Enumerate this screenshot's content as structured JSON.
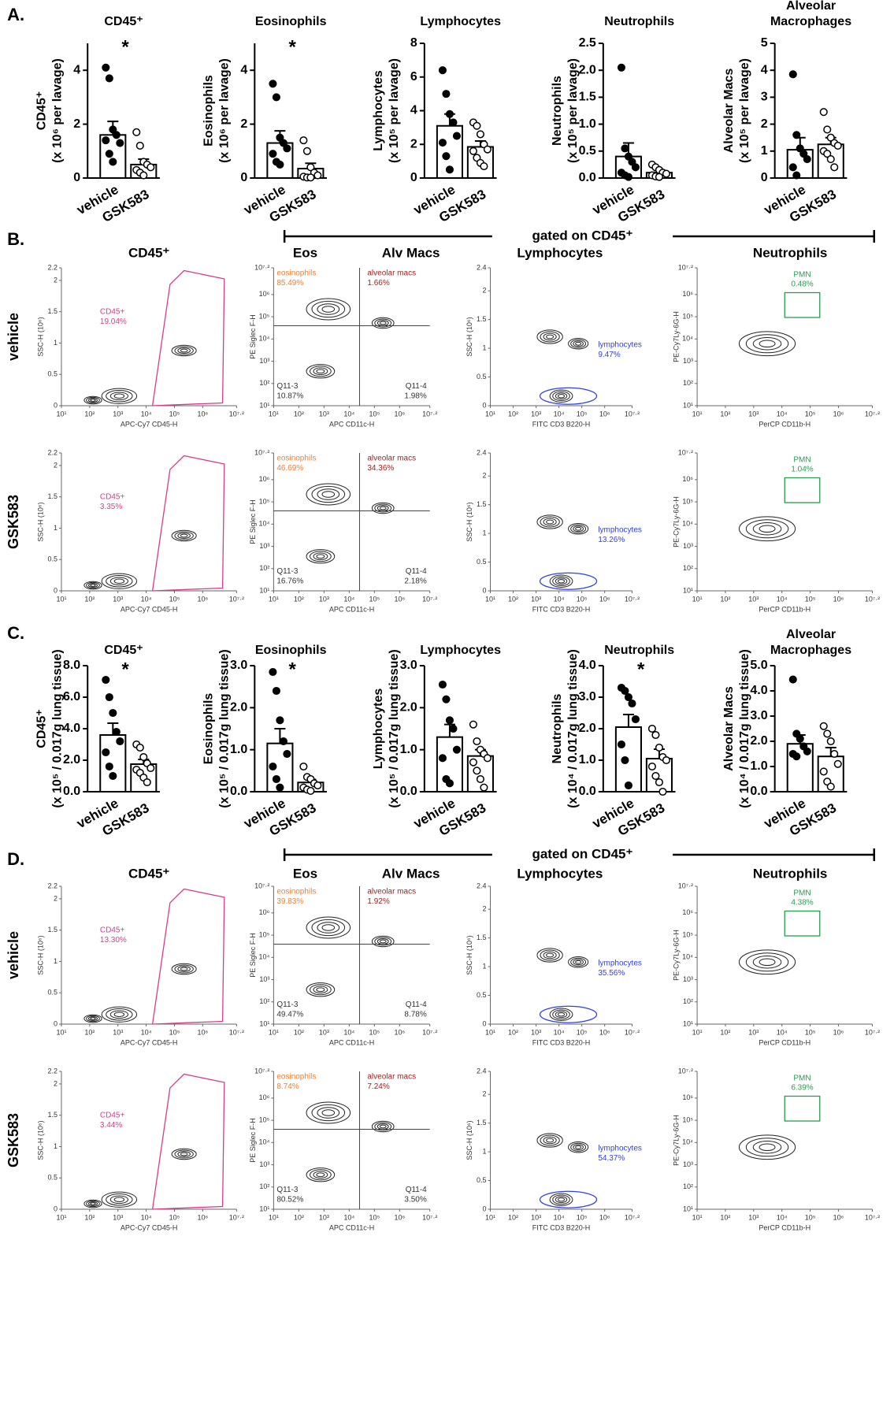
{
  "panel_labels": [
    "A.",
    "B.",
    "C.",
    "D."
  ],
  "chart_data": [
    {
      "type": "bar",
      "title": [
        "CD45⁺"
      ],
      "ylabel": [
        "CD45⁺",
        "(x 10⁶ per lavage)"
      ],
      "categories": [
        "vehicle",
        "GSK583"
      ],
      "values": [
        1.6,
        0.5
      ],
      "errors": [
        0.5,
        0.2
      ],
      "points": [
        [
          4.1,
          3.7,
          1.8,
          1.6,
          1.3,
          1.4,
          0.9,
          0.6
        ],
        [
          1.7,
          1.2,
          0.6,
          0.5,
          0.4,
          0.3,
          0.2,
          0.1
        ]
      ],
      "markers": [
        "filled",
        "open"
      ],
      "annotation": "*",
      "ylim": [
        0,
        5
      ],
      "yticks": [
        0,
        2,
        4
      ],
      "color": "#000000"
    },
    {
      "type": "bar",
      "title": [
        "Eosinophils"
      ],
      "ylabel": [
        "Eosinophils",
        "(x 10⁶ per lavage)"
      ],
      "categories": [
        "vehicle",
        "GSK583"
      ],
      "values": [
        1.3,
        0.35
      ],
      "errors": [
        0.45,
        0.2
      ],
      "points": [
        [
          3.5,
          3.0,
          1.5,
          1.3,
          1.1,
          0.9,
          0.6,
          0.5
        ],
        [
          1.4,
          1.0,
          0.4,
          0.2,
          0.1,
          0.05,
          0.02,
          0.02
        ]
      ],
      "markers": [
        "filled",
        "open"
      ],
      "annotation": "*",
      "ylim": [
        0,
        5
      ],
      "yticks": [
        0,
        2,
        4
      ],
      "color": "#000000"
    },
    {
      "type": "bar",
      "title": [
        "Lymphocytes"
      ],
      "ylabel": [
        "Lymphocytes",
        "(x 10⁵ per lavage)"
      ],
      "categories": [
        "vehicle",
        "GSK583"
      ],
      "values": [
        3.1,
        1.85
      ],
      "errors": [
        0.7,
        0.35
      ],
      "points": [
        [
          6.4,
          5.0,
          3.8,
          3.3,
          2.5,
          2.1,
          1.3,
          0.5
        ],
        [
          3.3,
          3.1,
          2.6,
          2.0,
          1.7,
          1.6,
          1.2,
          0.9,
          0.7
        ]
      ],
      "markers": [
        "filled",
        "open"
      ],
      "ylim": [
        0,
        8
      ],
      "yticks": [
        0,
        2,
        4,
        6,
        8
      ],
      "color": "#000000"
    },
    {
      "type": "bar",
      "title": [
        "Neutrophils"
      ],
      "ylabel": [
        "Neutrophils",
        "(x 10⁵ per lavage)"
      ],
      "categories": [
        "vehicle",
        "GSK583"
      ],
      "values": [
        0.4,
        0.1
      ],
      "errors": [
        0.25,
        0.04
      ],
      "points": [
        [
          2.05,
          0.55,
          0.4,
          0.3,
          0.2,
          0.1,
          0.05,
          0.02
        ],
        [
          0.25,
          0.2,
          0.15,
          0.1,
          0.08,
          0.05,
          0.03,
          0.02
        ]
      ],
      "markers": [
        "filled",
        "open"
      ],
      "ylim": [
        0,
        2.5
      ],
      "yticks": [
        {
          "value": 0,
          "label": "0.0"
        },
        0.5,
        {
          "value": 1,
          "label": "1.0"
        },
        1.5,
        {
          "value": 2,
          "label": "2.0"
        },
        2.5
      ],
      "color": "#000000"
    },
    {
      "type": "bar",
      "title": [
        "Alveolar",
        "Macrophages"
      ],
      "ylabel": [
        "Alveolar Macs",
        "(x 10⁵ per lavage)"
      ],
      "categories": [
        "vehicle",
        "GSK583"
      ],
      "values": [
        1.05,
        1.25
      ],
      "errors": [
        0.45,
        0.25
      ],
      "points": [
        [
          3.85,
          1.6,
          1.1,
          0.9,
          0.7,
          0.4,
          0.1
        ],
        [
          2.45,
          1.8,
          1.5,
          1.3,
          1.2,
          1.0,
          0.9,
          0.7,
          0.4
        ]
      ],
      "markers": [
        "filled",
        "open"
      ],
      "ylim": [
        0,
        5
      ],
      "yticks": [
        0,
        1,
        2,
        3,
        4,
        5
      ],
      "color": "#000000"
    },
    {
      "type": "bar",
      "title": [
        "CD45⁺"
      ],
      "ylabel": [
        "CD45⁺",
        "(x 10⁵ / 0.017g lung tissue)"
      ],
      "categories": [
        "vehicle",
        "GSK583"
      ],
      "values": [
        3.6,
        1.75
      ],
      "errors": [
        0.75,
        0.3
      ],
      "points": [
        [
          7.1,
          6.0,
          5.0,
          3.8,
          3.2,
          2.5,
          1.6,
          1.0
        ],
        [
          3.0,
          2.8,
          2.2,
          1.8,
          1.5,
          1.4,
          1.2,
          0.9,
          0.6
        ]
      ],
      "markers": [
        "filled",
        "open"
      ],
      "annotation": "*",
      "ylim": [
        0,
        8
      ],
      "yticks": [
        {
          "value": 0,
          "label": "0.0"
        },
        {
          "value": 2,
          "label": "2.0"
        },
        {
          "value": 4,
          "label": "4.0"
        },
        {
          "value": 6,
          "label": "6.0"
        },
        {
          "value": 8,
          "label": "8.0"
        }
      ],
      "color": "#000000"
    },
    {
      "type": "bar",
      "title": [
        "Eosinophils"
      ],
      "ylabel": [
        "Eosinophils",
        "(x 10⁵ / 0.017g lung tissue)"
      ],
      "categories": [
        "vehicle",
        "GSK583"
      ],
      "values": [
        1.15,
        0.22
      ],
      "errors": [
        0.35,
        0.07
      ],
      "points": [
        [
          2.85,
          2.4,
          1.7,
          1.2,
          0.9,
          0.6,
          0.3,
          0.1
        ],
        [
          0.6,
          0.35,
          0.3,
          0.2,
          0.15,
          0.1,
          0.05,
          0.02
        ]
      ],
      "markers": [
        "filled",
        "open"
      ],
      "annotation": "*",
      "ylim": [
        0,
        3
      ],
      "yticks": [
        {
          "value": 0,
          "label": "0.0"
        },
        {
          "value": 1,
          "label": "1.0"
        },
        {
          "value": 2,
          "label": "2.0"
        },
        {
          "value": 3,
          "label": "3.0"
        }
      ],
      "color": "#000000"
    },
    {
      "type": "bar",
      "title": [
        "Lymphocytes"
      ],
      "ylabel": [
        "Lymphocytes",
        "(x 10⁵ / 0.017g lung tissue)"
      ],
      "categories": [
        "vehicle",
        "GSK583"
      ],
      "values": [
        1.3,
        0.85
      ],
      "errors": [
        0.3,
        0.15
      ],
      "points": [
        [
          2.55,
          2.2,
          1.7,
          1.5,
          1.0,
          0.8,
          0.3,
          0.2
        ],
        [
          1.6,
          1.2,
          1.0,
          0.9,
          0.8,
          0.7,
          0.5,
          0.3,
          0.1
        ]
      ],
      "markers": [
        "filled",
        "open"
      ],
      "ylim": [
        0,
        3
      ],
      "yticks": [
        {
          "value": 0,
          "label": "0.0"
        },
        {
          "value": 1,
          "label": "1.0"
        },
        {
          "value": 2,
          "label": "2.0"
        },
        {
          "value": 3,
          "label": "3.0"
        }
      ],
      "color": "#000000"
    },
    {
      "type": "bar",
      "title": [
        "Neutrophils"
      ],
      "ylabel": [
        "Neutrophils",
        "(x 10⁴ / 0.017g lung tissue)"
      ],
      "categories": [
        "vehicle",
        "GSK583"
      ],
      "values": [
        2.05,
        1.05
      ],
      "errors": [
        0.4,
        0.3
      ],
      "points": [
        [
          3.3,
          3.2,
          3.0,
          2.8,
          2.3,
          1.5,
          1.0,
          0.2
        ],
        [
          2.0,
          1.8,
          1.4,
          1.1,
          1.0,
          0.8,
          0.5,
          0.3,
          0.0
        ]
      ],
      "markers": [
        "filled",
        "open"
      ],
      "annotation": "*",
      "ylim": [
        0,
        4
      ],
      "yticks": [
        {
          "value": 0,
          "label": "0.0"
        },
        {
          "value": 1,
          "label": "1.0"
        },
        {
          "value": 2,
          "label": "2.0"
        },
        {
          "value": 3,
          "label": "3.0"
        },
        {
          "value": 4,
          "label": "4.0"
        }
      ],
      "color": "#000000"
    },
    {
      "type": "bar",
      "title": [
        "Alveolar",
        "Macrophages"
      ],
      "ylabel": [
        "Alveolar Macs",
        "(x 10⁴ / 0.017g lung tissue)"
      ],
      "categories": [
        "vehicle",
        "GSK583"
      ],
      "values": [
        1.9,
        1.4
      ],
      "errors": [
        0.35,
        0.35
      ],
      "points": [
        [
          4.45,
          2.3,
          2.1,
          1.8,
          1.6,
          1.5,
          1.4
        ],
        [
          2.6,
          2.3,
          2.0,
          1.5,
          1.1,
          0.8,
          0.4,
          0.2
        ]
      ],
      "markers": [
        "filled",
        "open"
      ],
      "ylim": [
        0,
        5
      ],
      "yticks": [
        {
          "value": 0,
          "label": "0.0"
        },
        {
          "value": 1,
          "label": "1.0"
        },
        {
          "value": 2,
          "label": "2.0"
        },
        {
          "value": 3,
          "label": "3.0"
        },
        {
          "value": 4,
          "label": "4.0"
        },
        {
          "value": 5,
          "label": "5.0"
        }
      ],
      "color": "#000000"
    }
  ],
  "flow_log_ticks": [
    {
      "value": 10,
      "label": "10¹"
    },
    {
      "value": 100,
      "label": "10²"
    },
    {
      "value": 1000,
      "label": "10³"
    },
    {
      "value": 10000,
      "label": "10⁴"
    },
    {
      "value": 100000,
      "label": "10⁵"
    },
    {
      "value": 1000000,
      "label": "10⁶"
    },
    {
      "value": 15848932,
      "label": "10⁷·²"
    }
  ],
  "flow_log_lim": [
    10,
    15848932
  ],
  "flow_axes": {
    "cd45": {
      "xlabel": "APC-Cy7 CD45-H",
      "ylabel": "SSC-H (10⁶)",
      "yticks": [
        0,
        0.5,
        1,
        1.5,
        2,
        2.2
      ],
      "ylim": [
        0,
        2.2
      ]
    },
    "eos": {
      "xlabel": "APC CD11c-H",
      "ylabel": "PE Siglec F-H",
      "ylog": true
    },
    "lymph": {
      "xlabel": "FITC CD3 B220-H",
      "ylabel": "SSC-H (10⁶)",
      "yticks": [
        0,
        0.5,
        1,
        1.5,
        2,
        2.4
      ],
      "ylim": [
        0,
        2.4
      ]
    },
    "neut": {
      "xlabel": "PerCP CD11b-H",
      "ylabel": "PE-Cy7Ly-6G-H",
      "ylog": true
    }
  },
  "flow": [
    {
      "header": "gated on CD45⁺",
      "column_titles": [
        "CD45⁺",
        "Eos",
        "Alv Macs",
        "Lymphocytes",
        "Neutrophils"
      ],
      "rows": [
        {
          "name": "vehicle",
          "cd45": [
            "CD45+",
            "19.04%"
          ],
          "eos": [
            [
              "eosinophils",
              "85.49%"
            ],
            [
              "alveolar macs",
              "1.66%"
            ],
            [
              "Q11-3",
              "10.87%"
            ],
            [
              "Q11-4",
              "1.98%"
            ]
          ],
          "lymph": [
            "lymphocytes",
            "9.47%"
          ],
          "neut": [
            "PMN",
            "0.48%"
          ]
        },
        {
          "name": "GSK583",
          "cd45": [
            "CD45+",
            "3.35%"
          ],
          "eos": [
            [
              "eosinophils",
              "46.69%"
            ],
            [
              "alveolar macs",
              "34.36%"
            ],
            [
              "Q11-3",
              "16.76%"
            ],
            [
              "Q11-4",
              "2.18%"
            ]
          ],
          "lymph": [
            "lymphocytes",
            "13.26%"
          ],
          "neut": [
            "PMN",
            "1.04%"
          ]
        }
      ]
    },
    {
      "header": "gated on CD45⁺",
      "column_titles": [
        "CD45⁺",
        "Eos",
        "Alv Macs",
        "Lymphocytes",
        "Neutrophils"
      ],
      "rows": [
        {
          "name": "vehicle",
          "cd45": [
            "CD45+",
            "13.30%"
          ],
          "eos": [
            [
              "eosinophils",
              "39.83%"
            ],
            [
              "alveolar macs",
              "1.92%"
            ],
            [
              "Q11-3",
              "49.47%"
            ],
            [
              "Q11-4",
              "8.78%"
            ]
          ],
          "lymph": [
            "lymphocytes",
            "35.56%"
          ],
          "neut": [
            "PMN",
            "4.38%"
          ]
        },
        {
          "name": "GSK583",
          "cd45": [
            "CD45+",
            "3.44%"
          ],
          "eos": [
            [
              "eosinophils",
              "8.74%"
            ],
            [
              "alveolar macs",
              "7.24%"
            ],
            [
              "Q11-3",
              "80.52%"
            ],
            [
              "Q11-4",
              "3.50%"
            ]
          ],
          "lymph": [
            "lymphocytes",
            "54.37%"
          ],
          "neut": [
            "PMN",
            "6.39%"
          ]
        }
      ]
    }
  ]
}
